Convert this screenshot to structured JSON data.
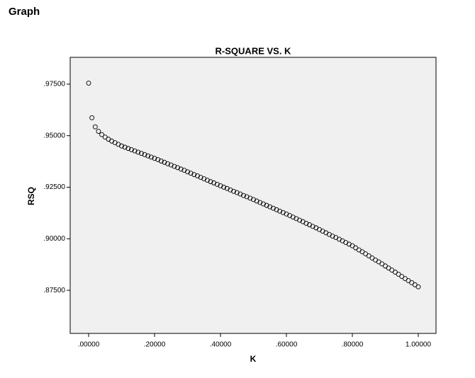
{
  "page_title": "Graph",
  "chart_data": {
    "type": "scatter",
    "title": "R-SQUARE VS. K",
    "x_label": "K",
    "y_label": "RSQ",
    "marker_color": "#000000",
    "background": "#f0f0f0",
    "xlim": [
      -0.0559,
      1.0538
    ],
    "ylim": [
      0.8541,
      0.988
    ],
    "xticks": [
      {
        "value": 0,
        "label": ".00000"
      },
      {
        "value": 0.2,
        "label": ".20000"
      },
      {
        "value": 0.4,
        "label": ".40000"
      },
      {
        "value": 0.6,
        "label": ".60000"
      },
      {
        "value": 0.8,
        "label": ".80000"
      },
      {
        "value": 1,
        "label": "1.00000"
      }
    ],
    "yticks": [
      {
        "value": 0.875,
        "label": ".87500"
      },
      {
        "value": 0.9,
        "label": ".90000"
      },
      {
        "value": 0.925,
        "label": ".92500"
      },
      {
        "value": 0.95,
        "label": ".95000"
      },
      {
        "value": 0.975,
        "label": ".97500"
      }
    ],
    "x": [
      0,
      0.01,
      0.02,
      0.03,
      0.04,
      0.05,
      0.06,
      0.07,
      0.08,
      0.09,
      0.1,
      0.11,
      0.12,
      0.13,
      0.14,
      0.15,
      0.16,
      0.17,
      0.18,
      0.19,
      0.2,
      0.21,
      0.22,
      0.23,
      0.24,
      0.25,
      0.26,
      0.27,
      0.28,
      0.29,
      0.3,
      0.31,
      0.32,
      0.33,
      0.34,
      0.35,
      0.36,
      0.37,
      0.38,
      0.39,
      0.4,
      0.41,
      0.42,
      0.43,
      0.44,
      0.45,
      0.46,
      0.47,
      0.48,
      0.49,
      0.5,
      0.51,
      0.52,
      0.53,
      0.54,
      0.55,
      0.56,
      0.57,
      0.58,
      0.59,
      0.6,
      0.61,
      0.62,
      0.63,
      0.64,
      0.65,
      0.66,
      0.67,
      0.68,
      0.69,
      0.7,
      0.71,
      0.72,
      0.73,
      0.74,
      0.75,
      0.76,
      0.77,
      0.78,
      0.79,
      0.8,
      0.81,
      0.82,
      0.83,
      0.84,
      0.85,
      0.86,
      0.87,
      0.88,
      0.89,
      0.9,
      0.91,
      0.92,
      0.93,
      0.94,
      0.95,
      0.96,
      0.97,
      0.98,
      0.99,
      1
    ],
    "values": [
      0.9755,
      0.9587,
      0.9543,
      0.9521,
      0.9505,
      0.9493,
      0.9483,
      0.9474,
      0.9466,
      0.9458,
      0.945,
      0.9444,
      0.9438,
      0.9432,
      0.9426,
      0.942,
      0.9414,
      0.9408,
      0.9402,
      0.9396,
      0.939,
      0.9384,
      0.9377,
      0.9371,
      0.9364,
      0.9358,
      0.9351,
      0.9345,
      0.9338,
      0.9332,
      0.9325,
      0.9318,
      0.9311,
      0.9305,
      0.9298,
      0.9291,
      0.9284,
      0.9277,
      0.9271,
      0.9264,
      0.9257,
      0.925,
      0.9244,
      0.9237,
      0.923,
      0.9224,
      0.9217,
      0.921,
      0.9204,
      0.9197,
      0.919,
      0.9183,
      0.9176,
      0.9169,
      0.9162,
      0.9155,
      0.9148,
      0.9141,
      0.9134,
      0.9127,
      0.912,
      0.9113,
      0.9105,
      0.9098,
      0.909,
      0.9083,
      0.9075,
      0.9068,
      0.906,
      0.9053,
      0.9045,
      0.9037,
      0.9029,
      0.9021,
      0.9013,
      0.9006,
      0.8998,
      0.899,
      0.8982,
      0.8974,
      0.8966,
      0.8956,
      0.8946,
      0.8937,
      0.8927,
      0.8917,
      0.8907,
      0.8897,
      0.8888,
      0.8878,
      0.8868,
      0.8858,
      0.8848,
      0.8838,
      0.8828,
      0.8817,
      0.8807,
      0.8797,
      0.8787,
      0.8777,
      0.8767
    ]
  }
}
